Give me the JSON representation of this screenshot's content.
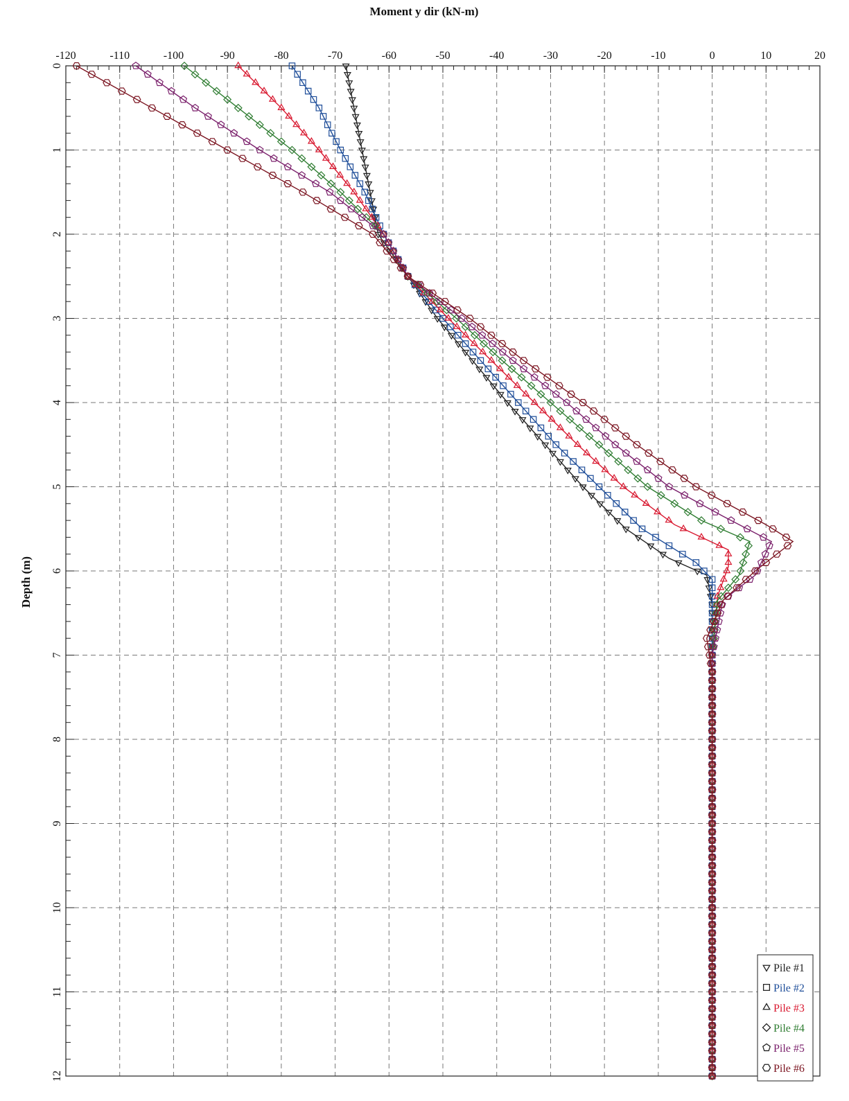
{
  "chart_data": {
    "type": "line",
    "title": "Moment y dir (kN-m)",
    "xlabel": "Moment y dir (kN-m)",
    "ylabel": "Depth (m)",
    "xlim": [
      -120,
      20
    ],
    "ylim": [
      0,
      12
    ],
    "y_inverted": true,
    "x_axis_position": "top",
    "grid": true,
    "legend_position": "bottom-right",
    "x_ticks": [
      "-120",
      "-110",
      "-100",
      "-90",
      "-80",
      "-70",
      "-60",
      "-50",
      "-40",
      "-30",
      "-20",
      "-10",
      "0",
      "10",
      "20"
    ],
    "y_ticks": [
      "0",
      "1",
      "2",
      "3",
      "4",
      "5",
      "6",
      "7",
      "8",
      "9",
      "10",
      "11",
      "12"
    ],
    "series": [
      {
        "name": "Pile #1",
        "color": "#222222",
        "marker": "triangle-down",
        "points": [
          [
            -68,
            0
          ],
          [
            -65,
            1
          ],
          [
            -62,
            2
          ],
          [
            -56.5,
            2.5
          ],
          [
            -51,
            3
          ],
          [
            -44.5,
            3.5
          ],
          [
            -38,
            4
          ],
          [
            -31,
            4.5
          ],
          [
            -24,
            5
          ],
          [
            -16,
            5.5
          ],
          [
            -8,
            5.85
          ],
          [
            -1,
            6.05
          ],
          [
            0,
            6.4
          ],
          [
            0,
            7
          ],
          [
            0,
            12
          ]
        ]
      },
      {
        "name": "Pile #2",
        "color": "#1f4e99",
        "marker": "square",
        "points": [
          [
            -78,
            0
          ],
          [
            -73,
            0.5
          ],
          [
            -69,
            1
          ],
          [
            -64.5,
            1.5
          ],
          [
            -61,
            2
          ],
          [
            -56.5,
            2.5
          ],
          [
            -50,
            3
          ],
          [
            -43,
            3.5
          ],
          [
            -36,
            4
          ],
          [
            -29,
            4.5
          ],
          [
            -21,
            5
          ],
          [
            -13,
            5.5
          ],
          [
            -3,
            5.9
          ],
          [
            0,
            6.1
          ],
          [
            0,
            6.4
          ],
          [
            0,
            7
          ],
          [
            0,
            12
          ]
        ]
      },
      {
        "name": "Pile #3",
        "color": "#d8182f",
        "marker": "triangle-up",
        "points": [
          [
            -88,
            0
          ],
          [
            -80,
            0.5
          ],
          [
            -73,
            1
          ],
          [
            -66.5,
            1.5
          ],
          [
            -61,
            2
          ],
          [
            -56.5,
            2.5
          ],
          [
            -49,
            3
          ],
          [
            -41,
            3.5
          ],
          [
            -33,
            4
          ],
          [
            -25,
            4.5
          ],
          [
            -16.5,
            5
          ],
          [
            -7,
            5.45
          ],
          [
            3,
            5.75
          ],
          [
            3,
            5.95
          ],
          [
            1,
            6.3
          ],
          [
            0,
            7
          ],
          [
            0,
            12
          ]
        ]
      },
      {
        "name": "Pile #4",
        "color": "#2f7d32",
        "marker": "diamond",
        "points": [
          [
            -98,
            0
          ],
          [
            -88,
            0.5
          ],
          [
            -78,
            1
          ],
          [
            -69,
            1.5
          ],
          [
            -61,
            2
          ],
          [
            -56.5,
            2.5
          ],
          [
            -47.5,
            3
          ],
          [
            -39,
            3.5
          ],
          [
            -30,
            4
          ],
          [
            -21,
            4.5
          ],
          [
            -12,
            5
          ],
          [
            -2,
            5.4
          ],
          [
            7,
            5.65
          ],
          [
            5,
            6.05
          ],
          [
            1,
            6.35
          ],
          [
            0,
            7
          ],
          [
            0,
            12
          ]
        ]
      },
      {
        "name": "Pile #5",
        "color": "#7a1f6b",
        "marker": "pentagon",
        "points": [
          [
            -107,
            0
          ],
          [
            -96,
            0.5
          ],
          [
            -84,
            1
          ],
          [
            -71,
            1.5
          ],
          [
            -61,
            2
          ],
          [
            -56.5,
            2.5
          ],
          [
            -46.5,
            3
          ],
          [
            -37,
            3.5
          ],
          [
            -27,
            4
          ],
          [
            -18,
            4.5
          ],
          [
            -8,
            5
          ],
          [
            2,
            5.35
          ],
          [
            11,
            5.65
          ],
          [
            8,
            6.05
          ],
          [
            2,
            6.35
          ],
          [
            0,
            7
          ],
          [
            0,
            12
          ]
        ]
      },
      {
        "name": "Pile #6",
        "color": "#7b1420",
        "marker": "hexagon",
        "points": [
          [
            -118,
            0
          ],
          [
            -104,
            0.5
          ],
          [
            -90,
            1
          ],
          [
            -76,
            1.5
          ],
          [
            -63,
            2
          ],
          [
            -56.5,
            2.5
          ],
          [
            -45,
            3
          ],
          [
            -35,
            3.5
          ],
          [
            -24,
            4
          ],
          [
            -14,
            4.5
          ],
          [
            -3,
            5
          ],
          [
            10,
            5.45
          ],
          [
            15,
            5.65
          ],
          [
            8,
            6.0
          ],
          [
            2,
            6.35
          ],
          [
            -1,
            6.8
          ],
          [
            0,
            7.2
          ],
          [
            0,
            12
          ]
        ]
      }
    ]
  }
}
